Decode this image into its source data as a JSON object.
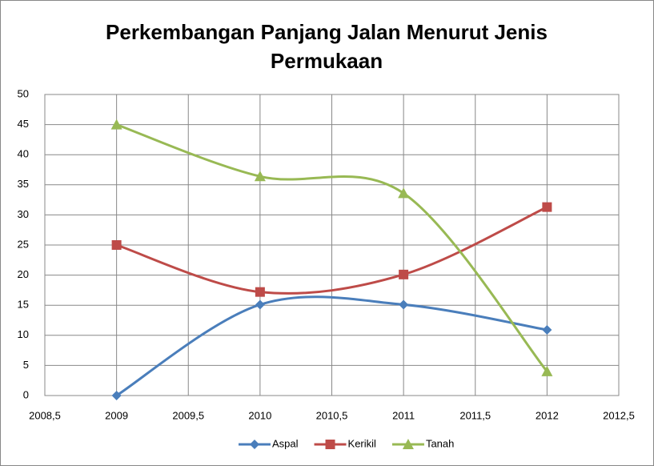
{
  "chart_data": {
    "type": "line",
    "title": "Perkembangan Panjang Jalan Menurut Jenis Permukaan",
    "x": [
      2009,
      2010,
      2011,
      2012
    ],
    "series": [
      {
        "name": "Aspal",
        "color": "#4a7ebb",
        "marker": "diamond",
        "values": [
          0,
          15.1,
          15.1,
          10.9
        ]
      },
      {
        "name": "Kerikil",
        "color": "#be4b48",
        "marker": "square",
        "values": [
          25,
          17.2,
          20.1,
          31.3
        ]
      },
      {
        "name": "Tanah",
        "color": "#98b954",
        "marker": "triangle",
        "values": [
          45,
          36.4,
          33.6,
          4
        ]
      }
    ],
    "xlim": [
      2008.5,
      2012.5
    ],
    "xticks": [
      {
        "value": 2008.5,
        "label": "2008,5"
      },
      2009,
      {
        "value": 2009.5,
        "label": "2009,5"
      },
      2010,
      {
        "value": 2010.5,
        "label": "2010,5"
      },
      2011,
      {
        "value": 2011.5,
        "label": "2011,5"
      },
      2012,
      {
        "value": 2012.5,
        "label": "2012,5"
      }
    ],
    "ylim": [
      0,
      50
    ],
    "yticks": [
      0,
      5,
      10,
      15,
      20,
      25,
      30,
      35,
      40,
      45,
      50
    ],
    "grid": true,
    "smooth": true,
    "legend": "bottom"
  }
}
